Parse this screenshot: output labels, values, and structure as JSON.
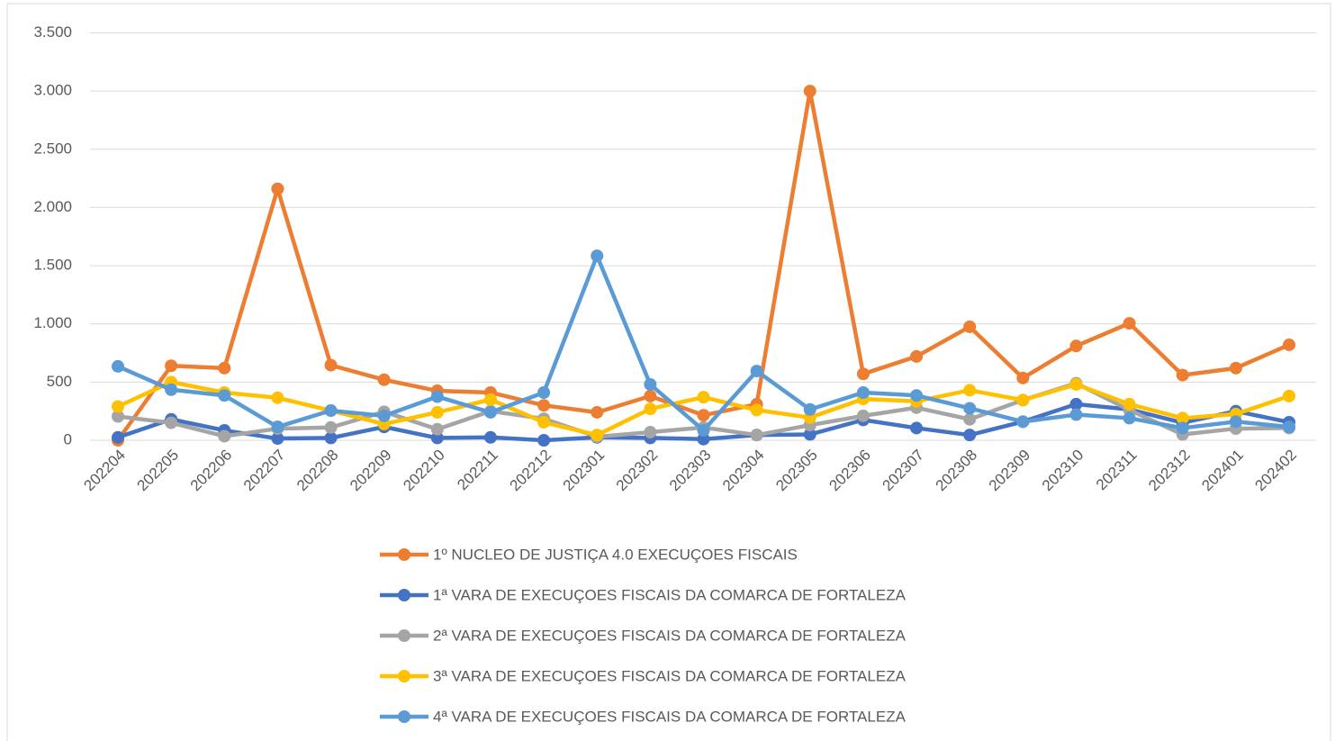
{
  "chart_data": {
    "type": "line",
    "categories": [
      "202204",
      "202205",
      "202206",
      "202207",
      "202208",
      "202209",
      "202210",
      "202211",
      "202212",
      "202301",
      "202302",
      "202303",
      "202304",
      "202305",
      "202306",
      "202307",
      "202308",
      "202309",
      "202310",
      "202311",
      "202312",
      "202401",
      "202402"
    ],
    "series": [
      {
        "name": "1º NUCLEO DE JUSTIÇA 4.0 EXECUÇOES FISCAIS",
        "color": "#ed7d31",
        "values": [
          0,
          640,
          620,
          2160,
          645,
          520,
          425,
          410,
          300,
          240,
          380,
          215,
          310,
          3000,
          570,
          720,
          975,
          535,
          810,
          1005,
          560,
          620,
          820
        ]
      },
      {
        "name": "1ª VARA DE EXECUÇOES FISCAIS DA COMARCA DE FORTALEZA",
        "color": "#4472c4",
        "values": [
          25,
          180,
          85,
          15,
          20,
          115,
          20,
          25,
          0,
          25,
          20,
          10,
          45,
          50,
          175,
          105,
          45,
          160,
          310,
          265,
          150,
          250,
          155
        ]
      },
      {
        "name": "2ª VARA DE EXECUÇOES FISCAIS DA COMARCA DE FORTALEZA",
        "color": "#a5a5a5",
        "values": [
          205,
          150,
          35,
          100,
          110,
          245,
          95,
          250,
          185,
          30,
          70,
          110,
          45,
          130,
          210,
          280,
          180,
          345,
          490,
          260,
          50,
          100,
          105
        ]
      },
      {
        "name": "3ª VARA DE EXECUÇOES FISCAIS DA COMARCA DE FORTALEZA",
        "color": "#ffc000",
        "values": [
          290,
          500,
          410,
          365,
          255,
          140,
          240,
          350,
          155,
          45,
          270,
          370,
          260,
          195,
          355,
          335,
          430,
          345,
          480,
          310,
          190,
          225,
          380
        ]
      },
      {
        "name": "4ª VARA DE EXECUÇOES FISCAIS DA COMARCA DE FORTALEZA",
        "color": "#5b9bd5",
        "values": [
          635,
          435,
          385,
          115,
          255,
          210,
          375,
          240,
          410,
          1585,
          480,
          85,
          595,
          265,
          410,
          385,
          275,
          160,
          220,
          190,
          105,
          160,
          115
        ]
      }
    ],
    "ylim": [
      0,
      3500
    ],
    "yticks": [
      0,
      500,
      {
        "value": 1000,
        "label": "1.000"
      },
      {
        "value": 1500,
        "label": "1.500"
      },
      {
        "value": 2000,
        "label": "2.000"
      },
      {
        "value": 2500,
        "label": "2.500"
      },
      {
        "value": 3000,
        "label": "3.000"
      },
      {
        "value": 3500,
        "label": "3.500"
      }
    ],
    "grid": true,
    "legend": "bottom"
  }
}
